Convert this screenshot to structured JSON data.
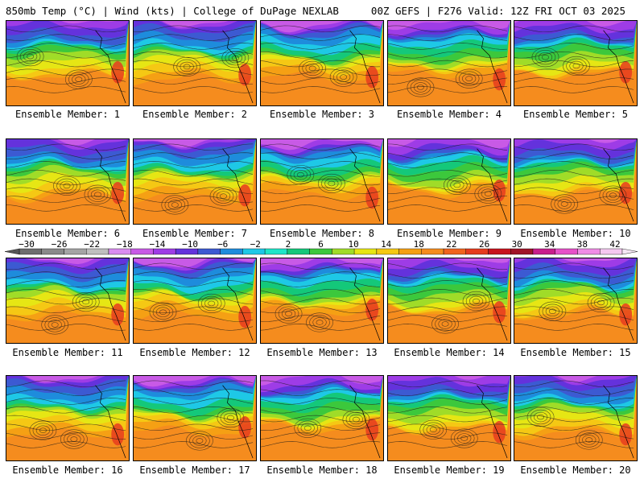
{
  "header": {
    "left_title": "850mb Temp (°C) | Wind (kts) | College of DuPage NEXLAB",
    "right_title": "00Z GEFS | F276 Valid: 12Z FRI OCT 03 2025"
  },
  "members": [
    {
      "label": "Ensemble Member: 1"
    },
    {
      "label": "Ensemble Member: 2"
    },
    {
      "label": "Ensemble Member: 3"
    },
    {
      "label": "Ensemble Member: 4"
    },
    {
      "label": "Ensemble Member: 5"
    },
    {
      "label": "Ensemble Member: 6"
    },
    {
      "label": "Ensemble Member: 7"
    },
    {
      "label": "Ensemble Member: 8"
    },
    {
      "label": "Ensemble Member: 9"
    },
    {
      "label": "Ensemble Member: 10"
    },
    {
      "label": "Ensemble Member: 11"
    },
    {
      "label": "Ensemble Member: 12"
    },
    {
      "label": "Ensemble Member: 13"
    },
    {
      "label": "Ensemble Member: 14"
    },
    {
      "label": "Ensemble Member: 15"
    },
    {
      "label": "Ensemble Member: 16"
    },
    {
      "label": "Ensemble Member: 17"
    },
    {
      "label": "Ensemble Member: 18"
    },
    {
      "label": "Ensemble Member: 19"
    },
    {
      "label": "Ensemble Member: 20"
    }
  ],
  "colorbar": {
    "labels": [
      "−30",
      "−26",
      "−22",
      "−18",
      "−14",
      "−10",
      "−6",
      "−2",
      "2",
      "6",
      "10",
      "14",
      "18",
      "22",
      "26",
      "30",
      "34",
      "38",
      "42"
    ],
    "colors": [
      "#6e6e6e",
      "#8a8a8a",
      "#a4a4a4",
      "#bfbfbf",
      "#d98cf0",
      "#c85ae6",
      "#9e3ce6",
      "#6432dc",
      "#3c5ad2",
      "#1e8cdc",
      "#1ec8e6",
      "#1ee6c8",
      "#14c87a",
      "#3cc83c",
      "#a0dc28",
      "#e6e614",
      "#f5c814",
      "#f5a014",
      "#f58c1e",
      "#f0641e",
      "#e63c1e",
      "#c8141e",
      "#a01428",
      "#c81e8c",
      "#e650c8",
      "#f08ce6",
      "#f5c8f0"
    ]
  }
}
